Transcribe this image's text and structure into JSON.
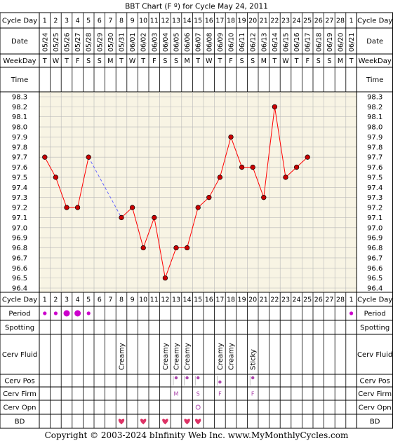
{
  "title": "BBT Chart (F º) for Cycle May 24, 2011",
  "footer": "Copyright © 2003-2024 bInfinity Web Inc.    www.MyMonthlyCycles.com",
  "row_labels": {
    "cycle_day": "Cycle Day",
    "date": "Date",
    "weekday": "WeekDay",
    "time": "Time",
    "period": "Period",
    "spotting": "Spotting",
    "cerv_fluid": "Cerv Fluid",
    "cerv_pos": "Cerv Pos",
    "cerv_firm": "Cerv Firm",
    "cerv_opn": "Cerv Opn",
    "bd": "BD"
  },
  "colors": {
    "grid_bg": "#f8f4e4",
    "temp_line": "#ff0000",
    "temp_point": "#cc0000",
    "gap_line": "#6666ff",
    "period": "#cc00cc",
    "bd_heart": "#dd3366",
    "cerv_marker": "#aa44aa"
  },
  "cycle_days": [
    "1",
    "2",
    "3",
    "4",
    "5",
    "6",
    "7",
    "8",
    "9",
    "10",
    "11",
    "12",
    "13",
    "14",
    "15",
    "16",
    "17",
    "18",
    "19",
    "20",
    "21",
    "22",
    "23",
    "24",
    "25",
    "26",
    "27",
    "28",
    "1"
  ],
  "dates": [
    "05/24",
    "05/25",
    "05/26",
    "05/27",
    "05/28",
    "05/29",
    "05/30",
    "05/31",
    "06/01",
    "06/02",
    "06/03",
    "06/04",
    "06/05",
    "06/06",
    "06/07",
    "06/08",
    "06/09",
    "06/10",
    "06/11",
    "06/12",
    "06/13",
    "06/14",
    "06/15",
    "06/16",
    "06/17",
    "06/18",
    "06/19",
    "06/20",
    "06/21"
  ],
  "weekdays": [
    "T",
    "W",
    "T",
    "F",
    "S",
    "S",
    "M",
    "T",
    "W",
    "T",
    "F",
    "S",
    "S",
    "M",
    "T",
    "W",
    "T",
    "F",
    "S",
    "S",
    "M",
    "T",
    "W",
    "T",
    "F",
    "S",
    "S",
    "M",
    "T"
  ],
  "y_ticks": [
    "98.3",
    "98.2",
    "98.1",
    "98.0",
    "97.9",
    "97.8",
    "97.7",
    "97.6",
    "97.5",
    "97.4",
    "97.3",
    "97.2",
    "97.1",
    "97.0",
    "96.9",
    "96.8",
    "96.7",
    "96.6",
    "96.5",
    "96.4"
  ],
  "chart_data": {
    "type": "line",
    "title": "BBT Chart (F º) for Cycle May 24, 2011",
    "xlabel": "Cycle Day",
    "ylabel": "",
    "ylim": [
      96.4,
      98.3
    ],
    "grid": true,
    "categories": [
      "1",
      "2",
      "3",
      "4",
      "5",
      "6",
      "7",
      "8",
      "9",
      "10",
      "11",
      "12",
      "13",
      "14",
      "15",
      "16",
      "17",
      "18",
      "19",
      "20",
      "21",
      "22",
      "23",
      "24",
      "25",
      "26",
      "27",
      "28",
      "1"
    ],
    "series": [
      {
        "values": [
          97.7,
          97.5,
          97.2,
          97.2,
          97.7,
          null,
          null,
          97.1,
          97.2,
          96.8,
          97.1,
          96.5,
          96.8,
          96.8,
          97.2,
          97.3,
          97.5,
          97.9,
          97.6,
          97.6,
          97.3,
          98.2,
          97.5,
          97.6,
          97.7,
          null,
          null,
          null,
          null
        ]
      }
    ],
    "gap_segment": {
      "from_day_index": 4,
      "to_day_index": 7
    }
  },
  "period": [
    {
      "day_index": 0,
      "size": "small"
    },
    {
      "day_index": 1,
      "size": "small"
    },
    {
      "day_index": 2,
      "size": "large"
    },
    {
      "day_index": 3,
      "size": "large"
    },
    {
      "day_index": 4,
      "size": "small"
    },
    {
      "day_index": 28,
      "size": "small"
    }
  ],
  "cerv_fluid": [
    {
      "day_index": 7,
      "text": "Creamy"
    },
    {
      "day_index": 11,
      "text": "Creamy"
    },
    {
      "day_index": 12,
      "text": "Creamy"
    },
    {
      "day_index": 13,
      "text": "Creamy"
    },
    {
      "day_index": 16,
      "text": "Creamy"
    },
    {
      "day_index": 17,
      "text": "Creamy"
    },
    {
      "day_index": 19,
      "text": "Sticky"
    }
  ],
  "cerv_pos": [
    {
      "day_index": 12,
      "level": "high"
    },
    {
      "day_index": 13,
      "level": "high"
    },
    {
      "day_index": 14,
      "level": "high"
    },
    {
      "day_index": 16,
      "level": "low"
    },
    {
      "day_index": 19,
      "level": "high"
    }
  ],
  "cerv_firm": [
    {
      "day_index": 12,
      "text": "M"
    },
    {
      "day_index": 14,
      "text": "S"
    },
    {
      "day_index": 16,
      "text": "F"
    },
    {
      "day_index": 19,
      "text": "F"
    }
  ],
  "cerv_opn": [
    {
      "day_index": 14,
      "text": "O"
    }
  ],
  "bd": [
    7,
    9,
    11,
    13,
    14
  ]
}
